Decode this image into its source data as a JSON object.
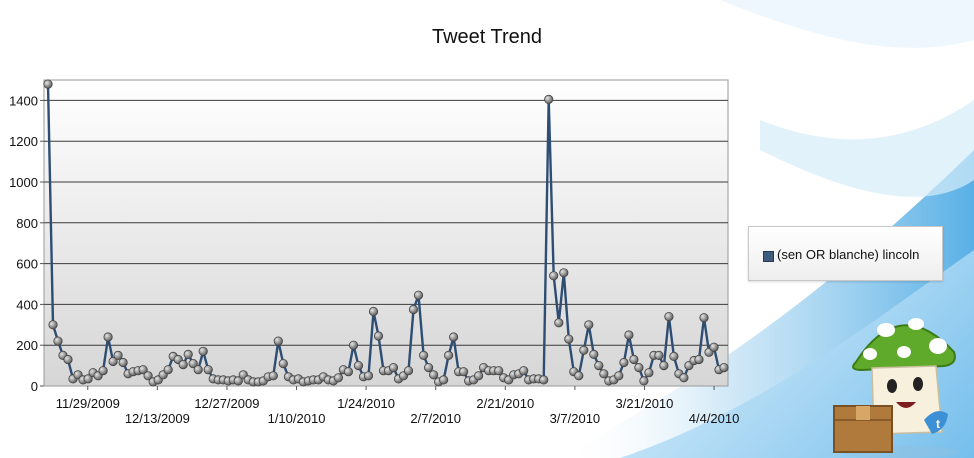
{
  "chart_data": {
    "type": "line",
    "title": "Tweet Trend",
    "xlabel": "",
    "ylabel": "",
    "ylim": [
      0,
      1500
    ],
    "y_ticks": [
      "0",
      "200",
      "400",
      "600",
      "800",
      "1000",
      "1200",
      "1400"
    ],
    "x_tick_labels": [
      "11/29/2009",
      "12/13/2009",
      "12/27/2009",
      "1/10/2010",
      "1/24/2010",
      "2/7/2010",
      "2/21/2010",
      "3/7/2010",
      "3/21/2010",
      "4/4/2010"
    ],
    "grid": true,
    "legend_position": "right",
    "series": [
      {
        "name": "(sen OR blanche) lincoln",
        "color": "#2e4d73",
        "x_start": "11/21/2009",
        "x_end": "4/6/2010",
        "values": [
          1480,
          300,
          220,
          150,
          130,
          35,
          55,
          30,
          35,
          65,
          50,
          75,
          240,
          120,
          150,
          115,
          60,
          70,
          75,
          80,
          50,
          20,
          30,
          55,
          80,
          145,
          130,
          105,
          155,
          110,
          80,
          170,
          80,
          35,
          30,
          30,
          25,
          30,
          25,
          55,
          30,
          20,
          20,
          25,
          45,
          50,
          220,
          110,
          45,
          30,
          35,
          20,
          25,
          30,
          30,
          45,
          30,
          25,
          40,
          80,
          70,
          200,
          100,
          45,
          50,
          365,
          245,
          75,
          75,
          90,
          35,
          50,
          75,
          375,
          445,
          150,
          90,
          55,
          20,
          30,
          150,
          240,
          70,
          70,
          25,
          30,
          50,
          90,
          75,
          75,
          75,
          40,
          30,
          55,
          60,
          75,
          30,
          35,
          35,
          30,
          1405,
          540,
          310,
          555,
          230,
          70,
          50,
          175,
          300,
          155,
          100,
          60,
          25,
          30,
          50,
          115,
          250,
          130,
          90,
          25,
          65,
          150,
          150,
          100,
          340,
          145,
          60,
          40,
          100,
          125,
          130,
          335,
          165,
          190,
          80,
          90
        ]
      }
    ]
  }
}
